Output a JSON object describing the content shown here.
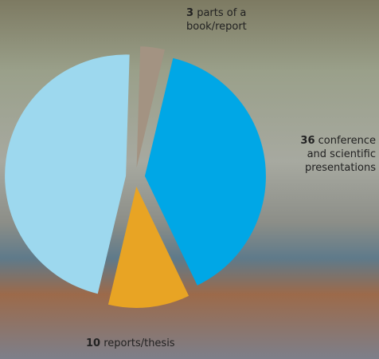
{
  "chart_data": {
    "type": "pie",
    "categories": [
      "parts of a book/report",
      "conference and scientific presentations",
      "reports/thesis",
      null
    ],
    "values": [
      3,
      36,
      10,
      43
    ],
    "colors": [
      "#a39382",
      "#00a7e6",
      "#e8a424",
      "#9dd8ee"
    ]
  }
}
